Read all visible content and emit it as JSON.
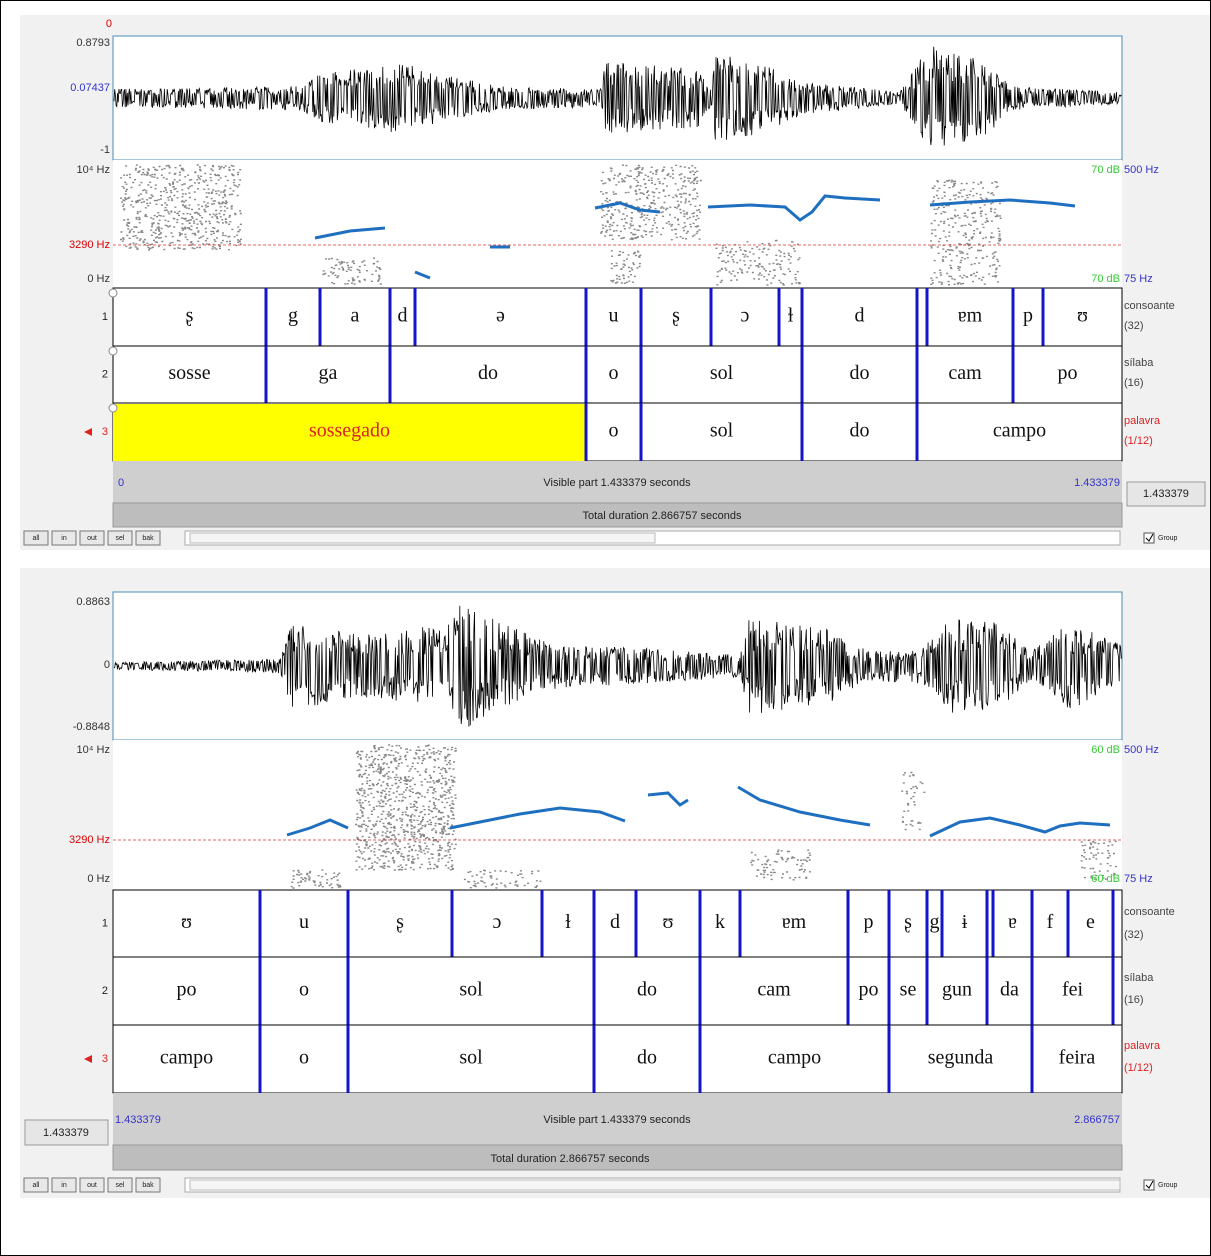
{
  "panels": [
    {
      "waveform": {
        "cursor": "0",
        "max": "0.8793",
        "mid": "0.07437",
        "min": "-1"
      },
      "spectrogram": {
        "top": "10⁴ Hz",
        "cursor": "3290 Hz",
        "bottom": "0 Hz",
        "db_top": "70 dB",
        "pitch_top": "500 Hz",
        "pitch_bottom": "75 Hz",
        "db_bottom": "70 dB"
      },
      "tiers": [
        {
          "number": "1",
          "name": "consoante",
          "count": "(32)",
          "intervals": [
            "ʂ",
            "g",
            "a",
            "d",
            "ə",
            "u",
            "ʂ",
            "ɔ",
            "ɫ",
            "d",
            "ɐm",
            "p",
            "ʊ"
          ]
        },
        {
          "number": "2",
          "name": "sílaba",
          "count": "(16)",
          "intervals": [
            "sosse",
            "ga",
            "do",
            "o",
            "sol",
            "do",
            "cam",
            "po"
          ]
        },
        {
          "number": "3",
          "name": "palavra",
          "count": "(1/12)",
          "intervals": [
            "sossegado",
            "o",
            "sol",
            "do",
            "campo"
          ]
        }
      ],
      "footer": {
        "start": "0",
        "visible": "Visible part 1.433379 seconds",
        "end": "1.433379",
        "window": "1.433379",
        "total": "Total duration 2.866757 seconds"
      },
      "buttons": [
        "all",
        "in",
        "out",
        "sel",
        "bak"
      ],
      "group": "Group"
    },
    {
      "waveform": {
        "max": "0.8863",
        "mid": "0",
        "min": "-0.8848"
      },
      "spectrogram": {
        "top": "10⁴ Hz",
        "cursor": "3290 Hz",
        "bottom": "0 Hz",
        "db_top": "60 dB",
        "pitch_top": "500 Hz",
        "pitch_bottom": "75 Hz",
        "db_bottom": "60 dB"
      },
      "tiers": [
        {
          "number": "1",
          "name": "consoante",
          "count": "(32)",
          "intervals": [
            "ʊ",
            "u",
            "ʂ",
            "ɔ",
            "ɫ",
            "d",
            "ʊ",
            "k",
            "ɐm",
            "p",
            "ʂ",
            "g",
            "ɨ",
            "ɐ",
            "f",
            "e"
          ]
        },
        {
          "number": "2",
          "name": "sílaba",
          "count": "(16)",
          "intervals": [
            "po",
            "o",
            "sol",
            "do",
            "cam",
            "po",
            "se",
            "gun",
            "da",
            "fei"
          ]
        },
        {
          "number": "3",
          "name": "palavra",
          "count": "(1/12)",
          "intervals": [
            "campo",
            "o",
            "sol",
            "do",
            "campo",
            "segunda",
            "feira"
          ]
        }
      ],
      "footer": {
        "start": "1.433379",
        "visible": "Visible part 1.433379 seconds",
        "end": "2.866757",
        "window": "1.433379",
        "total": "Total duration 2.866757 seconds"
      },
      "buttons": [
        "all",
        "in",
        "out",
        "sel",
        "bak"
      ],
      "group": "Group"
    }
  ]
}
